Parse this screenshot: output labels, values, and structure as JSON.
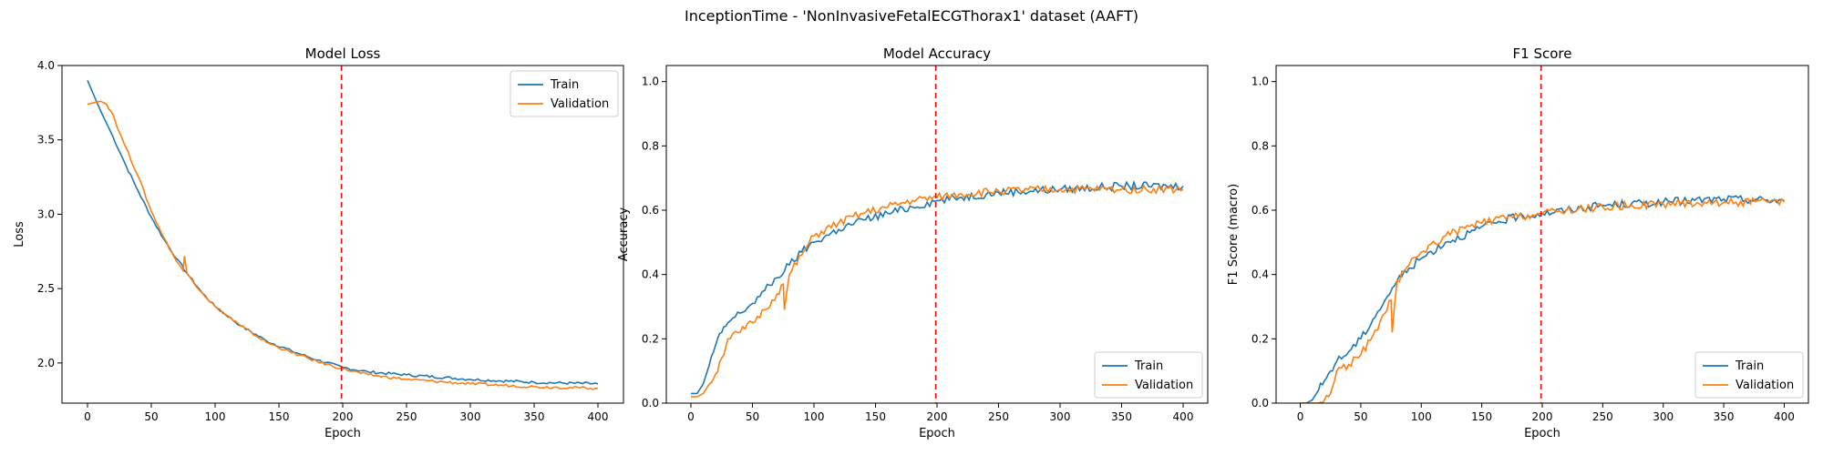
{
  "figure": {
    "suptitle": "InceptionTime - 'NonInvasiveFetalECGThorax1' dataset (AAFT)"
  },
  "colors": {
    "train": "#1f77b4",
    "validation": "#ff7f0e",
    "marker": "#ff0000"
  },
  "chart_data": [
    {
      "type": "line",
      "title": "Model Loss",
      "xlabel": "Epoch",
      "ylabel": "Loss",
      "xlim": [
        -20,
        420
      ],
      "ylim": [
        1.73,
        4.0
      ],
      "xticks": [
        0,
        50,
        100,
        150,
        200,
        250,
        300,
        350,
        400
      ],
      "yticks": [
        2.0,
        2.5,
        3.0,
        3.5,
        4.0
      ],
      "ytick_labels": [
        "2.0",
        "2.5",
        "3.0",
        "3.5",
        "4.0"
      ],
      "vline": 199,
      "legend": "upper-right",
      "series": [
        {
          "name": "Train",
          "x": [
            0,
            10,
            20,
            30,
            40,
            50,
            60,
            70,
            80,
            90,
            100,
            120,
            140,
            160,
            180,
            200,
            220,
            250,
            300,
            350,
            400
          ],
          "values": [
            3.9,
            3.7,
            3.52,
            3.33,
            3.15,
            2.98,
            2.83,
            2.7,
            2.58,
            2.47,
            2.38,
            2.25,
            2.15,
            2.08,
            2.02,
            1.97,
            1.94,
            1.92,
            1.89,
            1.87,
            1.86
          ]
        },
        {
          "name": "Validation",
          "x": [
            0,
            5,
            10,
            15,
            20,
            25,
            30,
            40,
            50,
            60,
            70,
            75,
            76,
            78,
            80,
            90,
            100,
            120,
            140,
            160,
            180,
            200,
            220,
            250,
            300,
            350,
            400
          ],
          "values": [
            3.74,
            3.75,
            3.76,
            3.74,
            3.67,
            3.55,
            3.45,
            3.25,
            3.02,
            2.84,
            2.68,
            2.62,
            2.72,
            2.6,
            2.58,
            2.47,
            2.38,
            2.25,
            2.14,
            2.07,
            2.01,
            1.96,
            1.92,
            1.89,
            1.86,
            1.84,
            1.83
          ]
        }
      ]
    },
    {
      "type": "line",
      "title": "Model Accuracy",
      "xlabel": "Epoch",
      "ylabel": "Accuracy",
      "xlim": [
        -20,
        420
      ],
      "ylim": [
        0.0,
        1.05
      ],
      "xticks": [
        0,
        50,
        100,
        150,
        200,
        250,
        300,
        350,
        400
      ],
      "yticks": [
        0.0,
        0.2,
        0.4,
        0.6,
        0.8,
        1.0
      ],
      "ytick_labels": [
        "0.0",
        "0.2",
        "0.4",
        "0.6",
        "0.8",
        "1.0"
      ],
      "vline": 199,
      "legend": "lower-right",
      "series": [
        {
          "name": "Train",
          "x": [
            0,
            5,
            10,
            15,
            20,
            25,
            30,
            40,
            50,
            60,
            70,
            80,
            90,
            100,
            120,
            140,
            160,
            180,
            200,
            220,
            250,
            300,
            350,
            400
          ],
          "values": [
            0.03,
            0.03,
            0.06,
            0.12,
            0.18,
            0.22,
            0.25,
            0.28,
            0.31,
            0.35,
            0.39,
            0.43,
            0.47,
            0.5,
            0.54,
            0.57,
            0.59,
            0.61,
            0.63,
            0.64,
            0.655,
            0.665,
            0.675,
            0.675
          ]
        },
        {
          "name": "Validation",
          "x": [
            0,
            5,
            10,
            15,
            20,
            25,
            30,
            40,
            50,
            60,
            70,
            75,
            76,
            80,
            90,
            100,
            120,
            140,
            160,
            180,
            200,
            220,
            250,
            300,
            350,
            400
          ],
          "values": [
            0.02,
            0.02,
            0.03,
            0.06,
            0.09,
            0.14,
            0.2,
            0.22,
            0.25,
            0.29,
            0.34,
            0.37,
            0.29,
            0.4,
            0.46,
            0.52,
            0.56,
            0.59,
            0.61,
            0.63,
            0.64,
            0.65,
            0.66,
            0.665,
            0.665,
            0.665
          ]
        }
      ]
    },
    {
      "type": "line",
      "title": "F1 Score",
      "xlabel": "Epoch",
      "ylabel": "F1 Score (macro)",
      "xlim": [
        -20,
        420
      ],
      "ylim": [
        0.0,
        1.05
      ],
      "xticks": [
        0,
        50,
        100,
        150,
        200,
        250,
        300,
        350,
        400
      ],
      "yticks": [
        0.0,
        0.2,
        0.4,
        0.6,
        0.8,
        1.0
      ],
      "ytick_labels": [
        "0.0",
        "0.2",
        "0.4",
        "0.6",
        "0.8",
        "1.0"
      ],
      "vline": 199,
      "legend": "lower-right",
      "series": [
        {
          "name": "Train",
          "x": [
            0,
            5,
            10,
            15,
            20,
            25,
            30,
            40,
            50,
            60,
            70,
            80,
            90,
            100,
            120,
            140,
            160,
            180,
            200,
            220,
            250,
            300,
            350,
            400
          ],
          "values": [
            0.0,
            0.0,
            0.01,
            0.04,
            0.07,
            0.1,
            0.13,
            0.16,
            0.2,
            0.26,
            0.32,
            0.38,
            0.42,
            0.45,
            0.5,
            0.53,
            0.56,
            0.58,
            0.59,
            0.6,
            0.615,
            0.625,
            0.635,
            0.63
          ]
        },
        {
          "name": "Validation",
          "x": [
            0,
            10,
            15,
            20,
            25,
            30,
            40,
            50,
            60,
            70,
            75,
            76,
            80,
            90,
            100,
            120,
            140,
            160,
            180,
            200,
            220,
            250,
            300,
            350,
            400
          ],
          "values": [
            0.0,
            0.0,
            0.0,
            0.01,
            0.03,
            0.1,
            0.12,
            0.15,
            0.21,
            0.28,
            0.32,
            0.22,
            0.38,
            0.43,
            0.47,
            0.52,
            0.55,
            0.57,
            0.58,
            0.59,
            0.6,
            0.61,
            0.62,
            0.625,
            0.625
          ]
        }
      ]
    }
  ]
}
